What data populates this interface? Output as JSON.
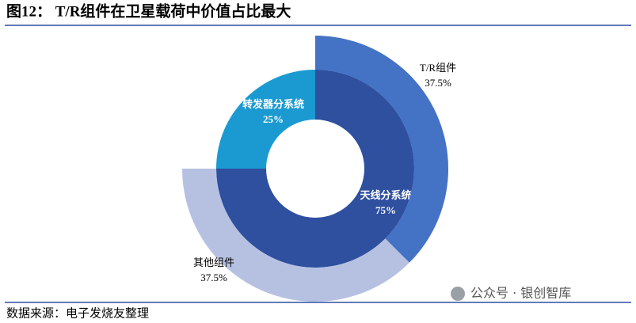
{
  "chart_data": {
    "type": "nested-donut",
    "title": "图12： T/R组件在卫星载荷中价值占比最大",
    "source": "数据来源：电子发烧友整理",
    "watermark": "公众号 · 银创智库",
    "rings": [
      {
        "categories": [
          "天线分系统",
          "转发器分系统"
        ],
        "values": [
          75,
          25
        ],
        "value_labels": [
          "75%",
          "25%"
        ],
        "colors": [
          "#2f4f9f",
          "#1b9ad2"
        ]
      },
      {
        "categories": [
          "T/R组件",
          "其他组件"
        ],
        "values": [
          37.5,
          37.5
        ],
        "value_labels": [
          "37.5%",
          "37.5%"
        ],
        "colors": [
          "#4472c4",
          "#b6c1e2"
        ]
      }
    ]
  }
}
